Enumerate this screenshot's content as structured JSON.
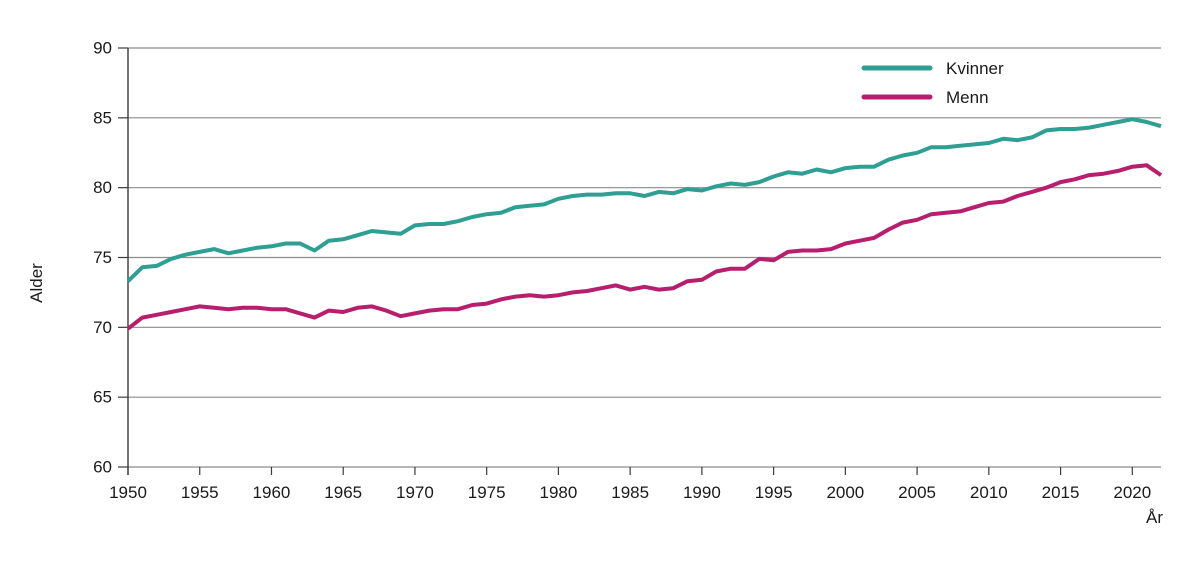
{
  "chart_data": {
    "type": "line",
    "title": "",
    "xlabel": "År",
    "ylabel": "Alder",
    "xlim": [
      1950,
      2022
    ],
    "ylim": [
      60,
      90
    ],
    "x_ticks": [
      1950,
      1955,
      1960,
      1965,
      1970,
      1975,
      1980,
      1985,
      1990,
      1995,
      2000,
      2005,
      2010,
      2015,
      2020
    ],
    "y_ticks": [
      60,
      65,
      70,
      75,
      80,
      85,
      90
    ],
    "grid": "horizontal",
    "legend_position": "top-right",
    "x_start": 1950,
    "x_step": 1,
    "series": [
      {
        "name": "Kvinner",
        "color": "#2f9e93",
        "values": [
          73.3,
          74.3,
          74.4,
          74.9,
          75.2,
          75.4,
          75.6,
          75.3,
          75.5,
          75.7,
          75.8,
          76.0,
          76.0,
          75.5,
          76.2,
          76.3,
          76.6,
          76.9,
          76.8,
          76.7,
          77.3,
          77.4,
          77.4,
          77.6,
          77.9,
          78.1,
          78.2,
          78.6,
          78.7,
          78.8,
          79.2,
          79.4,
          79.5,
          79.5,
          79.6,
          79.6,
          79.4,
          79.7,
          79.6,
          79.9,
          79.8,
          80.1,
          80.3,
          80.2,
          80.4,
          80.8,
          81.1,
          81.0,
          81.3,
          81.1,
          81.4,
          81.5,
          81.5,
          82.0,
          82.3,
          82.5,
          82.9,
          82.9,
          83.0,
          83.1,
          83.2,
          83.5,
          83.4,
          83.6,
          84.1,
          84.2,
          84.2,
          84.3,
          84.5,
          84.7,
          84.9,
          84.7,
          84.4
        ]
      },
      {
        "name": "Menn",
        "color": "#b71e6d",
        "values": [
          69.9,
          70.7,
          70.9,
          71.1,
          71.3,
          71.5,
          71.4,
          71.3,
          71.4,
          71.4,
          71.3,
          71.3,
          71.0,
          70.7,
          71.2,
          71.1,
          71.4,
          71.5,
          71.2,
          70.8,
          71.0,
          71.2,
          71.3,
          71.3,
          71.6,
          71.7,
          72.0,
          72.2,
          72.3,
          72.2,
          72.3,
          72.5,
          72.6,
          72.8,
          73.0,
          72.7,
          72.9,
          72.7,
          72.8,
          73.3,
          73.4,
          74.0,
          74.2,
          74.2,
          74.9,
          74.8,
          75.4,
          75.5,
          75.5,
          75.6,
          76.0,
          76.2,
          76.4,
          77.0,
          77.5,
          77.7,
          78.1,
          78.2,
          78.3,
          78.6,
          78.9,
          79.0,
          79.4,
          79.7,
          80.0,
          80.4,
          80.6,
          80.9,
          81.0,
          81.2,
          81.5,
          81.6,
          80.9
        ]
      }
    ],
    "colors": {
      "grid": "#8c8c8c",
      "axis": "#3a3a3a",
      "text": "#1a1a1a",
      "background": "#ffffff"
    }
  }
}
